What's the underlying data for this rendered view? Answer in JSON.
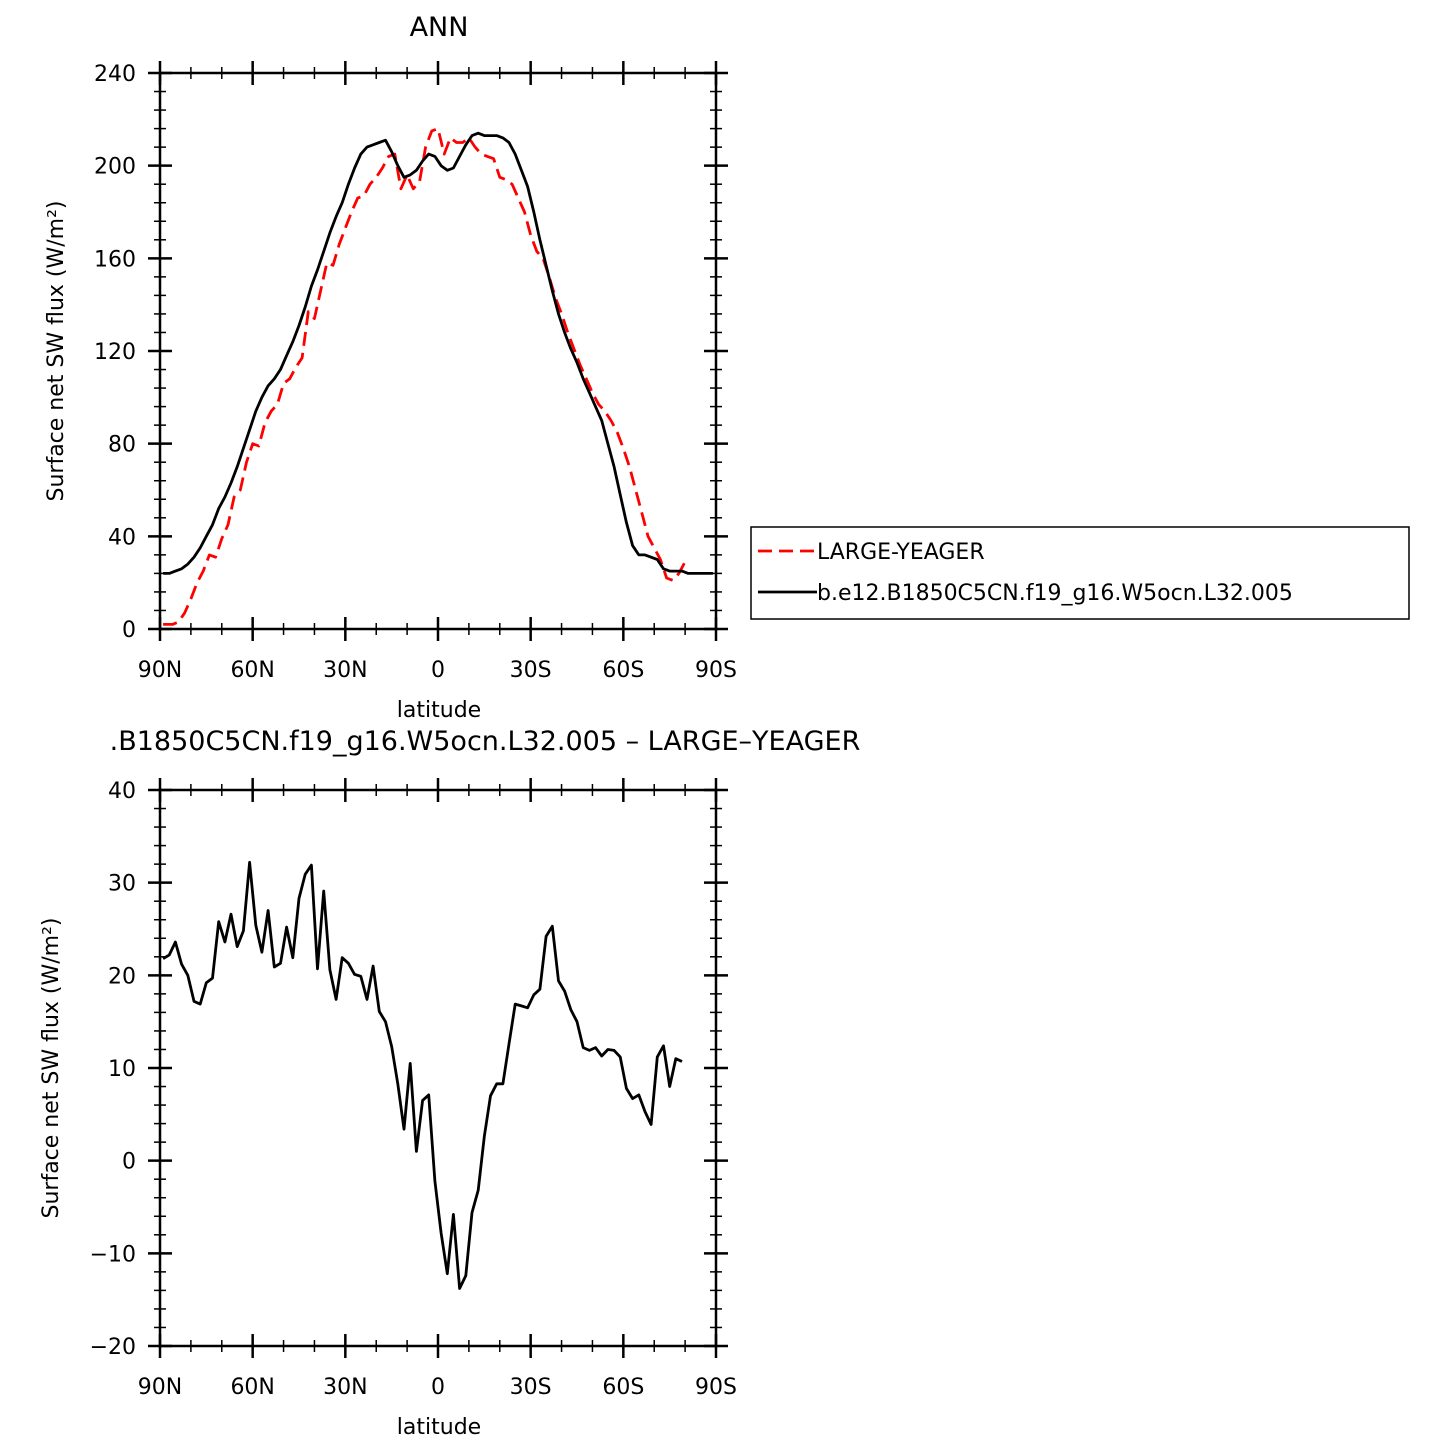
{
  "chart_data": [
    {
      "type": "line",
      "title": "ANN",
      "xlabel": "latitude",
      "ylabel": "Surface net SW flux (W/m²)",
      "xlim": [
        90,
        -90
      ],
      "ylim": [
        0,
        240
      ],
      "yticks": [
        0,
        40,
        80,
        120,
        160,
        200,
        240
      ],
      "xticks": [
        90,
        60,
        30,
        0,
        -30,
        -60,
        -90
      ],
      "xtick_labels": [
        "90N",
        "60N",
        "30N",
        "0",
        "30S",
        "60S",
        "90S"
      ],
      "legend_position": "right",
      "series": [
        {
          "name": "LARGE-YEAGER",
          "color": "#ff0000",
          "dash": "dashed",
          "x": [
            89,
            86,
            84,
            82,
            80,
            78,
            76,
            74,
            72,
            70,
            68,
            66,
            64,
            62,
            60,
            58,
            56,
            54,
            52,
            50,
            48,
            46,
            44,
            42,
            40,
            38,
            36,
            34,
            32,
            30,
            28,
            26,
            24,
            22,
            20,
            18,
            16,
            14,
            12,
            10,
            8,
            6,
            4,
            2,
            0,
            -2,
            -4,
            -6,
            -8,
            -10,
            -12,
            -14,
            -16,
            -18,
            -20,
            -22,
            -24,
            -26,
            -28,
            -30,
            -32,
            -34,
            -36,
            -38,
            -40,
            -42,
            -44,
            -46,
            -48,
            -50,
            -52,
            -54,
            -56,
            -58,
            -60,
            -62,
            -64,
            -66,
            -68,
            -70,
            -72,
            -74,
            -76,
            -78,
            -80
          ],
          "y": [
            2,
            2,
            3,
            7,
            13,
            20,
            25,
            32,
            31,
            39,
            45,
            57,
            60,
            72,
            80,
            79,
            89,
            94,
            97,
            106,
            108,
            113,
            117,
            137,
            134,
            146,
            158,
            157,
            166,
            173,
            180,
            186,
            187,
            192,
            195,
            199,
            204,
            205,
            190,
            196,
            190,
            193,
            208,
            215,
            216,
            205,
            212,
            210,
            210,
            212,
            208,
            205,
            204,
            203,
            195,
            194,
            192,
            186,
            180,
            170,
            163,
            160,
            152,
            143,
            136,
            128,
            121,
            114,
            108,
            102,
            97,
            94,
            90,
            85,
            78,
            70,
            60,
            50,
            40,
            35,
            30,
            22,
            21,
            24,
            29
          ]
        },
        {
          "name": "b.e12.B1850C5CN.f19_g16.W5ocn.L32.005",
          "color": "#000000",
          "dash": "solid",
          "x": [
            89,
            87,
            85,
            83,
            81,
            79,
            77,
            75,
            73,
            71,
            69,
            67,
            65,
            63,
            61,
            59,
            57,
            55,
            53,
            51,
            49,
            47,
            45,
            43,
            41,
            39,
            37,
            35,
            33,
            31,
            29,
            27,
            25,
            23,
            21,
            19,
            17,
            15,
            13,
            11,
            9,
            7,
            5,
            3,
            1,
            -1,
            -3,
            -5,
            -7,
            -9,
            -11,
            -13,
            -15,
            -17,
            -19,
            -21,
            -23,
            -25,
            -27,
            -29,
            -31,
            -33,
            -35,
            -37,
            -39,
            -41,
            -43,
            -45,
            -47,
            -49,
            -51,
            -53,
            -55,
            -57,
            -59,
            -61,
            -63,
            -65,
            -67,
            -69,
            -71,
            -73,
            -75,
            -77,
            -79,
            -81,
            -83,
            -85,
            -87,
            -89
          ],
          "y": [
            24,
            24,
            25,
            26,
            28,
            31,
            35,
            40,
            45,
            52,
            57,
            63,
            70,
            78,
            86,
            94,
            100,
            105,
            108,
            112,
            118,
            124,
            131,
            139,
            148,
            155,
            163,
            171,
            178,
            184,
            192,
            199,
            205,
            208,
            209,
            210,
            211,
            206,
            200,
            195,
            196,
            198,
            202,
            205,
            204,
            200,
            198,
            199,
            204,
            209,
            213,
            214,
            213,
            213,
            213,
            212,
            210,
            205,
            198,
            191,
            180,
            168,
            157,
            146,
            136,
            128,
            121,
            115,
            108,
            102,
            96,
            90,
            80,
            70,
            58,
            46,
            36,
            32,
            32,
            31,
            30,
            26,
            25,
            25,
            25,
            24,
            24,
            24,
            24,
            24
          ]
        }
      ]
    },
    {
      "type": "line",
      "title": ".B1850C5CN.f19_g16.W5ocn.L32.005 – LARGE–YEAGER",
      "xlabel": "latitude",
      "ylabel": "Surface net SW flux (W/m²)",
      "xlim": [
        90,
        -90
      ],
      "ylim": [
        -20,
        40
      ],
      "yticks": [
        -20,
        -10,
        0,
        10,
        20,
        30,
        40
      ],
      "ytick_labels": [
        "−20",
        "−10",
        "0",
        "10",
        "20",
        "30",
        "40"
      ],
      "xticks": [
        90,
        60,
        30,
        0,
        -30,
        -60,
        -90
      ],
      "xtick_labels": [
        "90N",
        "60N",
        "30N",
        "0",
        "30S",
        "60S",
        "90S"
      ],
      "series": [
        {
          "name": "",
          "color": "#000000",
          "dash": "solid",
          "x": [
            89,
            87,
            85,
            83,
            81,
            79,
            77,
            75,
            73,
            71,
            69,
            67,
            65,
            63,
            61,
            59,
            57,
            55,
            53,
            51,
            49,
            47,
            45,
            43,
            41,
            39,
            37,
            35,
            33,
            31,
            29,
            27,
            25,
            23,
            21,
            19,
            17,
            15,
            13,
            11,
            9,
            7,
            5,
            3,
            1,
            -1,
            -3,
            -5,
            -7,
            -9,
            -11,
            -13,
            -15,
            -17,
            -19,
            -21,
            -23,
            -25,
            -27,
            -29,
            -31,
            -33,
            -35,
            -37,
            -39,
            -41,
            -43,
            -45,
            -47,
            -49,
            -51,
            -53,
            -55,
            -57,
            -59,
            -61,
            -63,
            -65,
            -67,
            -69,
            -71,
            -73,
            -75,
            -77,
            -79
          ],
          "y": [
            21.8,
            22.2,
            23.6,
            21.2,
            20,
            17.2,
            16.9,
            19.2,
            19.7,
            25.8,
            23.6,
            26.6,
            23.1,
            24.8,
            32.2,
            25.4,
            22.5,
            27,
            20.9,
            21.3,
            25.2,
            21.9,
            28.3,
            30.9,
            31.9,
            20.7,
            29.1,
            20.6,
            17.4,
            21.9,
            21.3,
            20.1,
            19.9,
            17.4,
            21,
            16.1,
            15,
            12.3,
            8.3,
            3.4,
            10.5,
            1,
            6.5,
            7.1,
            -2.2,
            -7.8,
            -12.2,
            -5.8,
            -13.8,
            -12.4,
            -5.6,
            -3.2,
            2.6,
            7,
            8.3,
            8.3,
            12.6,
            16.9,
            16.7,
            16.5,
            17.9,
            18.5,
            24.2,
            25.3,
            19.4,
            18.3,
            16.3,
            15,
            12.2,
            11.9,
            12.2,
            11.3,
            12,
            11.9,
            11.2,
            7.8,
            6.7,
            7.1,
            5.3,
            3.9,
            11.2,
            12.4,
            8,
            11,
            10.7
          ]
        }
      ]
    }
  ]
}
